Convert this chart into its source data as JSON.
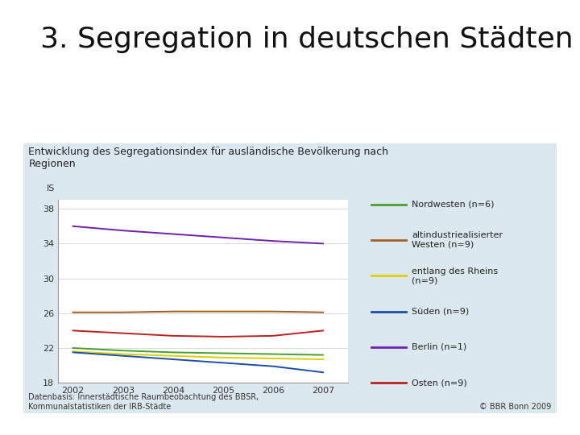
{
  "title": "3. Segregation in deutschen Städten",
  "chart_title": "Entwicklung des Segregationsindex für ausländische Bevölkerung nach\nRegionen",
  "ylabel": "IS",
  "xlabel_note": "Datenbasis: Innerstädtische Raumbeobachtung des BBSR,\nKommunalstatistiken der IRB-Städte",
  "copyright": "© BBR Bonn 2009",
  "years": [
    2002,
    2003,
    2004,
    2005,
    2006,
    2007
  ],
  "series": [
    {
      "label": "Nordwesten (n=6)",
      "color": "#4a9e2f",
      "values": [
        22.0,
        21.7,
        21.5,
        21.4,
        21.3,
        21.2
      ]
    },
    {
      "label": "altindustriealisierter\nWesten (n=9)",
      "color": "#a06020",
      "values": [
        26.1,
        26.1,
        26.2,
        26.2,
        26.2,
        26.1
      ]
    },
    {
      "label": "entlang des Rheins\n(n=9)",
      "color": "#ddd000",
      "values": [
        21.6,
        21.3,
        21.1,
        20.9,
        20.8,
        20.7
      ]
    },
    {
      "label": "Süden (n=9)",
      "color": "#1a4faa",
      "values": [
        21.5,
        21.1,
        20.7,
        20.3,
        19.9,
        19.2
      ]
    },
    {
      "label": "Berlin (n=1)",
      "color": "#7020b0",
      "values": [
        36.0,
        35.5,
        35.1,
        34.7,
        34.3,
        34.0
      ]
    },
    {
      "label": "Osten (n=9)",
      "color": "#bb2222",
      "values": [
        24.0,
        23.7,
        23.4,
        23.3,
        23.4,
        24.0
      ]
    }
  ],
  "ylim": [
    18,
    39
  ],
  "yticks": [
    18,
    22,
    26,
    30,
    34,
    38
  ],
  "panel_bg_color": "#dce8f0",
  "plot_bg_color": "#ffffff",
  "fig_bg_color": "#ffffff",
  "title_fontsize": 26,
  "chart_title_fontsize": 9,
  "tick_fontsize": 8,
  "note_fontsize": 7,
  "legend_fontsize": 8
}
